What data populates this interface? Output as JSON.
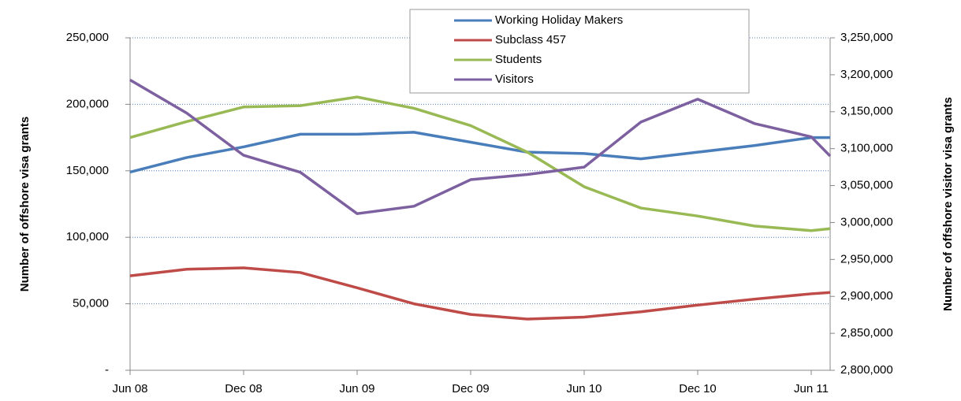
{
  "chart_data": {
    "type": "line",
    "y_axis_label": "Number of offshore visa grants",
    "y2_axis_label": "Number of offshore visitor visa grants",
    "x": [
      0,
      3,
      6,
      9,
      12,
      15,
      18,
      21,
      24,
      27,
      30,
      33,
      36,
      37
    ],
    "xlim": [
      0,
      37
    ],
    "xticks": [
      {
        "value": 0,
        "label": "Jun 08"
      },
      {
        "value": 6,
        "label": "Dec 08"
      },
      {
        "value": 12,
        "label": "Jun 09"
      },
      {
        "value": 18,
        "label": "Dec 09"
      },
      {
        "value": 24,
        "label": "Jun 10"
      },
      {
        "value": 30,
        "label": "Dec 10"
      },
      {
        "value": 36,
        "label": "Jun 11"
      }
    ],
    "ylim": [
      0,
      250000
    ],
    "yticks": [
      {
        "value": 0,
        "label": "-"
      },
      {
        "value": 50000,
        "label": "50,000"
      },
      {
        "value": 100000,
        "label": "100,000"
      },
      {
        "value": 150000,
        "label": "150,000"
      },
      {
        "value": 200000,
        "label": "200,000"
      },
      {
        "value": 250000,
        "label": "250,000"
      }
    ],
    "y2lim": [
      2800000,
      3250000
    ],
    "y2ticks": [
      {
        "value": 2800000,
        "label": "2,800,000"
      },
      {
        "value": 2850000,
        "label": "2,850,000"
      },
      {
        "value": 2900000,
        "label": "2,900,000"
      },
      {
        "value": 2950000,
        "label": "2,950,000"
      },
      {
        "value": 3000000,
        "label": "3,000,000"
      },
      {
        "value": 3050000,
        "label": "3,050,000"
      },
      {
        "value": 3100000,
        "label": "3,100,000"
      },
      {
        "value": 3150000,
        "label": "3,150,000"
      },
      {
        "value": 3200000,
        "label": "3,200,000"
      },
      {
        "value": 3250000,
        "label": "3,250,000"
      }
    ],
    "grid": true,
    "legend": "top",
    "series": [
      {
        "name": "Working Holiday Makers",
        "color": "#4a7ebb",
        "values": [
          149000,
          160000,
          168000,
          177500,
          177500,
          179000,
          171500,
          164000,
          163000,
          159000,
          164000,
          169000,
          175000,
          175000
        ]
      },
      {
        "name": "Subclass 457",
        "color": "#be4b48",
        "values": [
          71000,
          76000,
          77000,
          73500,
          62000,
          50000,
          42000,
          38500,
          40000,
          44000,
          49000,
          53500,
          57500,
          58500
        ]
      },
      {
        "name": "Students",
        "color": "#98b954",
        "values": [
          175000,
          187000,
          198000,
          199000,
          205500,
          197000,
          184000,
          164000,
          138000,
          122000,
          116000,
          108500,
          105000,
          106500
        ]
      },
      {
        "name": "Visitors",
        "color": "#7d60a0",
        "axis": "y2",
        "values": [
          3193000,
          3148000,
          3091000,
          3068000,
          3012000,
          3022000,
          3058000,
          3065000,
          3075000,
          3136000,
          3167000,
          3134000,
          3116000,
          3090000
        ]
      }
    ]
  }
}
